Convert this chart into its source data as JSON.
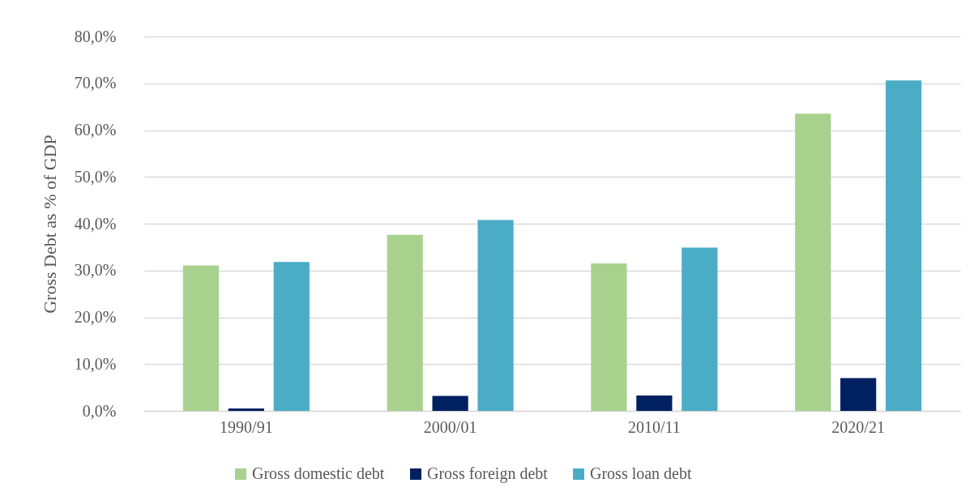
{
  "chart_data": {
    "type": "bar",
    "ylabel": "Gross Debt as % of GDP",
    "categories": [
      "1990/91",
      "2000/01",
      "2010/11",
      "2020/21"
    ],
    "series": [
      {
        "name": "Gross domestic debt",
        "color": "#a9d18e",
        "values": [
          31.1,
          37.6,
          31.5,
          63.5
        ]
      },
      {
        "name": "Gross foreign debt",
        "color": "#002060",
        "values": [
          0.5,
          3.2,
          3.3,
          7.0
        ]
      },
      {
        "name": "Gross loan debt",
        "color": "#4bacc6",
        "values": [
          31.8,
          40.8,
          34.9,
          70.6
        ]
      }
    ],
    "ylim": [
      0,
      80
    ],
    "yticks": [
      {
        "value": 0,
        "label": "0,0%"
      },
      {
        "value": 10,
        "label": "10,0%"
      },
      {
        "value": 20,
        "label": "20,0%"
      },
      {
        "value": 30,
        "label": "30,0%"
      },
      {
        "value": 40,
        "label": "40,0%"
      },
      {
        "value": 50,
        "label": "50,0%"
      },
      {
        "value": 60,
        "label": "60,0%"
      },
      {
        "value": 70,
        "label": "70,0%"
      },
      {
        "value": 80,
        "label": "80,0%"
      }
    ],
    "grid": "y",
    "legend": "bottom"
  }
}
